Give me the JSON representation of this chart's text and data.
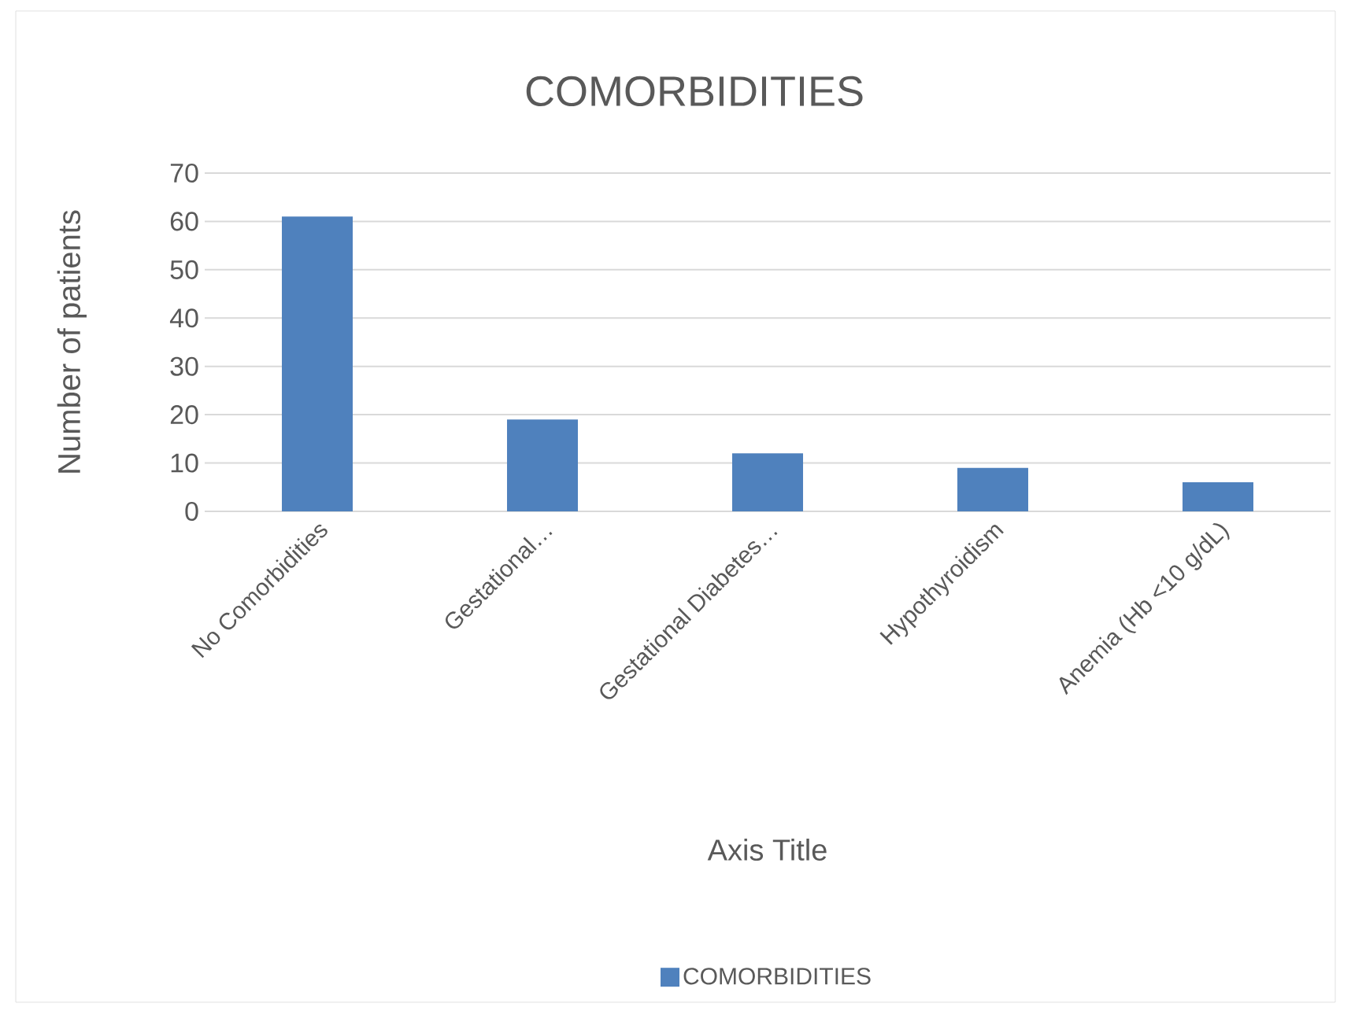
{
  "chart_data": {
    "type": "bar",
    "title": "COMORBIDITIES",
    "xlabel": "Axis Title",
    "ylabel": "Number of patients",
    "categories": [
      "No Comorbidities",
      "Gestational…",
      "Gestational Diabetes…",
      "Hypothyroidism",
      "Anemia (Hb <10 g/dL)"
    ],
    "series": [
      {
        "name": "COMORBIDITIES",
        "color": "#4f81bd",
        "values": [
          61,
          19,
          12,
          9,
          6
        ]
      }
    ],
    "ylim": [
      0,
      70
    ],
    "yticks": [
      0,
      10,
      20,
      30,
      40,
      50,
      60,
      70
    ],
    "grid": "y",
    "legend": "bottom"
  }
}
